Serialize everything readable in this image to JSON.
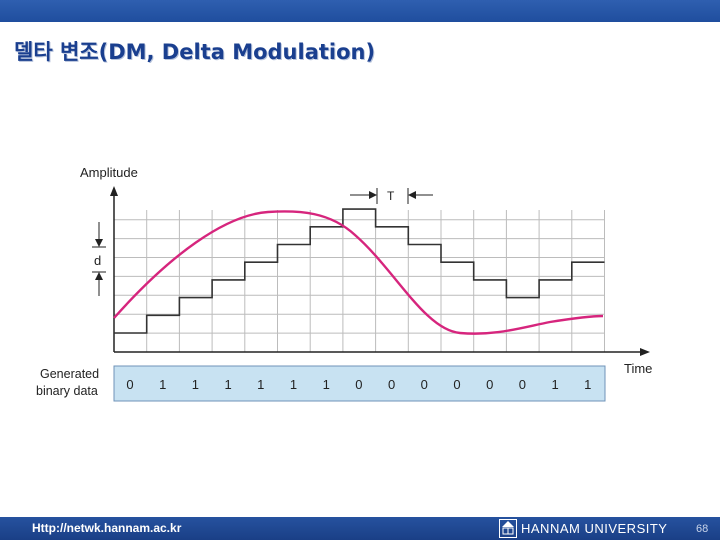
{
  "slide": {
    "title": "델타 변조(DM, Delta Modulation)",
    "colors": {
      "header_bar": "#2f5fb0",
      "title": "#1a3f8f",
      "signal_curve": "#d6257d",
      "staircase": "#333333",
      "grid": "#bcbcbc",
      "data_band": "#c8e2f2"
    }
  },
  "diagram": {
    "y_axis_label": "Amplitude",
    "x_axis_label": "Time",
    "period_label": "T",
    "step_label": "d",
    "data_row_label_line1": "Generated",
    "data_row_label_line2": "binary data",
    "bits": [
      "0",
      "1",
      "1",
      "1",
      "1",
      "1",
      "1",
      "0",
      "0",
      "0",
      "0",
      "0",
      "0",
      "1",
      "1"
    ],
    "staircase_levels": [
      0,
      1,
      2,
      3,
      4,
      5,
      6,
      7,
      6,
      5,
      4,
      3,
      2,
      3,
      4
    ]
  },
  "footer": {
    "url": "Http://netwk.hannam.ac.kr",
    "logo_icon": "hannam-university-emblem-icon",
    "university": "HANNAM UNIVERSITY",
    "page_number": "68"
  }
}
